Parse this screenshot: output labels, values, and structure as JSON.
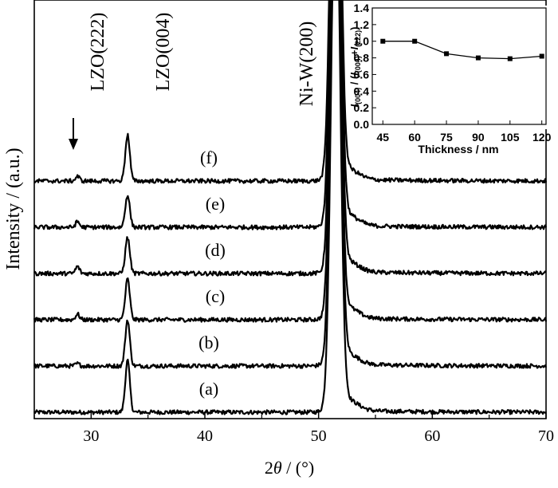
{
  "chart_data": [
    {
      "type": "line",
      "xlabel_parts": [
        "2",
        "θ",
        " / (°)"
      ],
      "ylabel": "Intensity / (a.u.)",
      "xlim": [
        25,
        70
      ],
      "x_ticks": [
        30,
        40,
        50,
        60,
        70
      ],
      "y_ticks": [],
      "grid": false,
      "peaks": [
        {
          "label": "LZO(222)",
          "x": 28.8
        },
        {
          "label": "LZO(004)",
          "x": 33.2
        },
        {
          "label": "Ni-W(200)",
          "x": 51.5
        }
      ],
      "series": [
        {
          "name": "(a)",
          "baseline": 0.0,
          "peak_004": 1.12,
          "peak_222": 0.0
        },
        {
          "name": "(b)",
          "baseline": 1.0,
          "peak_004": 1.0,
          "peak_222": 0.05
        },
        {
          "name": "(c)",
          "baseline": 2.0,
          "peak_004": 0.88,
          "peak_222": 0.12
        },
        {
          "name": "(d)",
          "baseline": 3.0,
          "peak_004": 0.78,
          "peak_222": 0.15
        },
        {
          "name": "(e)",
          "baseline": 4.0,
          "peak_004": 0.7,
          "peak_222": 0.12
        },
        {
          "name": "(f)",
          "baseline": 5.0,
          "peak_004": 1.0,
          "peak_222": 0.1
        }
      ]
    },
    {
      "type": "line",
      "xlabel": "Thickness / nm",
      "ylabel_parts": [
        "I",
        "(004)",
        " / (",
        "I",
        "(004)",
        "+",
        "I",
        "(222)",
        ")"
      ],
      "x": [
        45,
        60,
        75,
        90,
        105,
        120
      ],
      "values": [
        1.0,
        1.0,
        0.85,
        0.8,
        0.79,
        0.82
      ],
      "xlim": [
        40,
        122
      ],
      "ylim": [
        0.0,
        1.4
      ],
      "x_ticks": [
        45,
        60,
        75,
        90,
        105,
        120
      ],
      "y_ticks": [
        0.0,
        0.2,
        0.4,
        0.6,
        0.8,
        1.0,
        1.2,
        1.4
      ],
      "grid": false
    }
  ]
}
